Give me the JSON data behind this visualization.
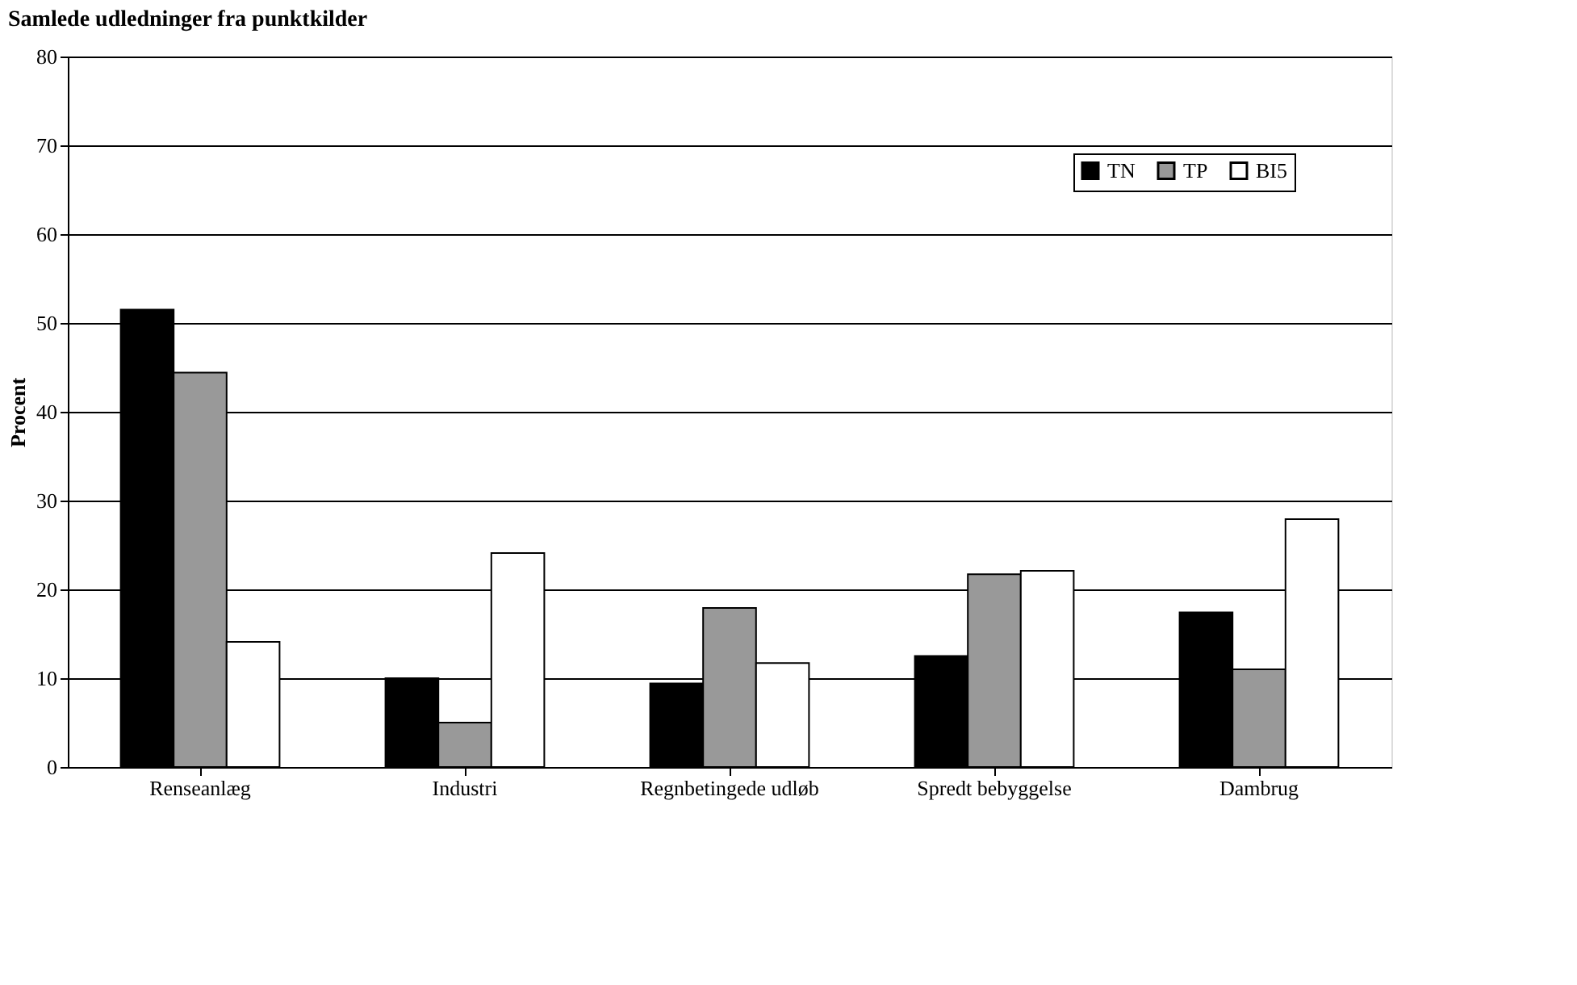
{
  "chart_data": {
    "type": "bar",
    "title": "Samlede udledninger fra punktkilder",
    "ylabel": "Procent",
    "categories": [
      "Renseanlæg",
      "Industri",
      "Regnbetingede udløb",
      "Spredt bebyggelse",
      "Dambrug"
    ],
    "series": [
      {
        "name": "TN",
        "color": "#000000",
        "values": [
          51.5,
          10.0,
          9.4,
          12.5,
          17.4
        ]
      },
      {
        "name": "TP",
        "color": "#999999",
        "values": [
          44.4,
          5.0,
          17.9,
          21.7,
          11.0
        ]
      },
      {
        "name": "BI5",
        "color": "#ffffff",
        "values": [
          14.1,
          24.1,
          11.7,
          22.1,
          27.9
        ]
      }
    ],
    "ylim": [
      0,
      80
    ],
    "yticks": [
      0,
      10,
      20,
      30,
      40,
      50,
      60,
      70,
      80
    ],
    "grid": "y",
    "legend": "top right"
  }
}
